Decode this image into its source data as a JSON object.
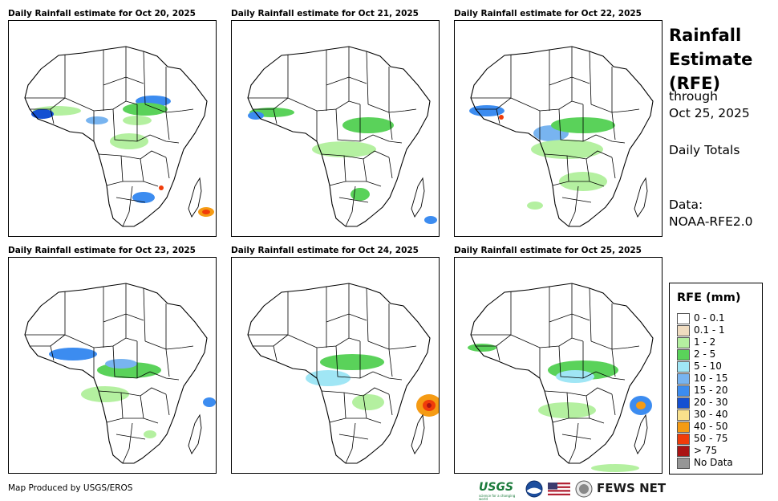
{
  "panels": [
    {
      "title": "Daily Rainfall estimate for Oct 20, 2025"
    },
    {
      "title": "Daily Rainfall estimate for Oct 21, 2025"
    },
    {
      "title": "Daily Rainfall estimate for Oct 22, 2025"
    },
    {
      "title": "Daily Rainfall estimate for Oct 23, 2025"
    },
    {
      "title": "Daily Rainfall estimate for Oct 24, 2025"
    },
    {
      "title": "Daily Rainfall estimate for Oct 25, 2025"
    }
  ],
  "side": {
    "title_line1": "Rainfall",
    "title_line2": "Estimate",
    "title_line3": "(RFE)",
    "through": "through",
    "date": "Oct 25, 2025",
    "totals": "Daily Totals",
    "data_label": "Data:",
    "data_source": "NOAA-RFE2.0"
  },
  "legend": {
    "title": "RFE (mm)",
    "items": [
      {
        "label": "0 - 0.1",
        "color": "#ffffff"
      },
      {
        "label": "0.1 - 1",
        "color": "#f0dcc0"
      },
      {
        "label": "1 - 2",
        "color": "#b4f0a0"
      },
      {
        "label": "2 - 5",
        "color": "#5ad25a"
      },
      {
        "label": "5 - 10",
        "color": "#a0e6f5"
      },
      {
        "label": "10 - 15",
        "color": "#78b4f0"
      },
      {
        "label": "15 - 20",
        "color": "#3c8cf0"
      },
      {
        "label": "20 - 30",
        "color": "#1450d2"
      },
      {
        "label": "30 - 40",
        "color": "#fae18c"
      },
      {
        "label": "40 - 50",
        "color": "#f59b14"
      },
      {
        "label": "50 - 75",
        "color": "#f03c0a"
      },
      {
        "label": "> 75",
        "color": "#aa1414"
      },
      {
        "label": "No Data",
        "color": "#969696"
      }
    ]
  },
  "footer": {
    "credit": "Map Produced by USGS/EROS"
  },
  "logos": {
    "usgs": "USGS",
    "usgs_tagline": "science for a changing world",
    "fews": "FEWS NET"
  }
}
